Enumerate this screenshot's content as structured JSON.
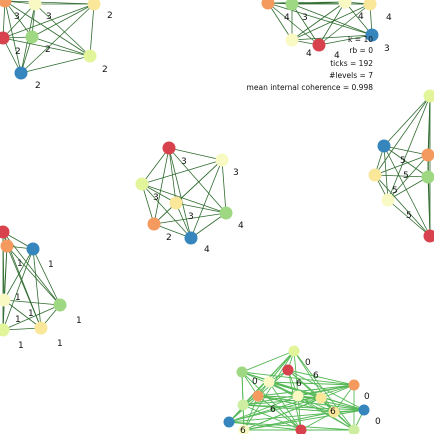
{
  "palette": {
    "red": "#d7424d",
    "orange": "#f59a5f",
    "yellow": "#fbe79a",
    "pale": "#f9f9c4",
    "lime": "#e3f59a",
    "green": "#9ed882",
    "lgreen": "#cdeea0",
    "blue": "#3686bd",
    "edge": "#2e6b2e",
    "edge_light": "#55b855"
  },
  "stats": {
    "k": "k = 10",
    "rb": "rb = 0",
    "ticks": "ticks = 192",
    "levels": "#levels = 7",
    "coherence": "mean internal coherence = 0.998"
  },
  "clusters": [
    {
      "name": "cluster-2",
      "edge_style": "dark",
      "nodes": [
        {
          "color": "orange"
        },
        {
          "color": "pale"
        },
        {
          "color": "yellow"
        },
        {
          "color": "red"
        },
        {
          "color": "green"
        },
        {
          "color": "lime"
        },
        {
          "color": "blue"
        }
      ],
      "labels": [
        "3",
        "3",
        "2",
        "2",
        "2",
        "2",
        "2"
      ]
    },
    {
      "name": "cluster-4",
      "edge_style": "dark",
      "nodes": [
        {
          "color": "orange"
        },
        {
          "color": "green"
        },
        {
          "color": "pale"
        },
        {
          "color": "yellow"
        },
        {
          "color": "pale"
        },
        {
          "color": "red"
        },
        {
          "color": "blue"
        }
      ],
      "labels": [
        "4",
        "3",
        "4",
        "4",
        "4",
        "4",
        "3"
      ]
    },
    {
      "name": "cluster-3",
      "edge_style": "dark",
      "nodes": [
        {
          "color": "red"
        },
        {
          "color": "pale"
        },
        {
          "color": "lime"
        },
        {
          "color": "yellow"
        },
        {
          "color": "green"
        },
        {
          "color": "orange"
        },
        {
          "color": "blue"
        }
      ],
      "labels": [
        "3",
        "3",
        "3",
        "3",
        "4",
        "2",
        "4"
      ]
    },
    {
      "name": "cluster-5",
      "edge_style": "dark",
      "nodes": [
        {
          "color": "lime"
        },
        {
          "color": "blue"
        },
        {
          "color": "orange"
        },
        {
          "color": "yellow"
        },
        {
          "color": "green"
        },
        {
          "color": "pale"
        },
        {
          "color": "red"
        }
      ],
      "labels": [
        "5",
        "5",
        "5",
        "5"
      ]
    },
    {
      "name": "cluster-1",
      "edge_style": "dark",
      "nodes": [
        {
          "color": "red"
        },
        {
          "color": "orange"
        },
        {
          "color": "blue"
        },
        {
          "color": "green"
        },
        {
          "color": "pale"
        },
        {
          "color": "lime"
        },
        {
          "color": "yellow"
        }
      ],
      "labels": [
        "1",
        "1",
        "1",
        "1",
        "1",
        "1",
        "1",
        "1"
      ]
    },
    {
      "name": "cluster-6",
      "edge_style": "light",
      "nodes": [
        {
          "color": "lime"
        },
        {
          "color": "red"
        },
        {
          "color": "green"
        },
        {
          "color": "orange"
        },
        {
          "color": "pale"
        },
        {
          "color": "orange"
        },
        {
          "color": "yellow"
        },
        {
          "color": "pale"
        },
        {
          "color": "lgreen"
        },
        {
          "color": "blue"
        },
        {
          "color": "blue"
        },
        {
          "color": "yellow"
        },
        {
          "color": "red"
        },
        {
          "color": "lgreen"
        },
        {
          "color": "pale"
        }
      ],
      "labels": [
        "0",
        "0",
        "0",
        "6",
        "6",
        "6",
        "0",
        "6",
        "6"
      ]
    }
  ]
}
